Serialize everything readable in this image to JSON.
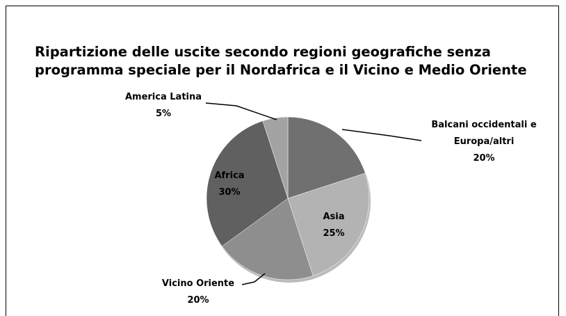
{
  "chart_data": {
    "type": "pie",
    "title": "Ripartizione delle uscite secondo regioni geografiche senza programma speciale per il Nordafrica e il Vicino e Medio Oriente",
    "categories": [
      "Balcani occidentali e Europa/altri",
      "Asia",
      "Vicino Oriente",
      "Africa",
      "America Latina"
    ],
    "values": [
      20,
      25,
      20,
      30,
      5
    ],
    "value_labels": [
      "20%",
      "25%",
      "20%",
      "30%",
      "5%"
    ],
    "colors": [
      "#707070",
      "#b3b3b3",
      "#8e8e8e",
      "#606060",
      "#a3a3a3"
    ]
  }
}
